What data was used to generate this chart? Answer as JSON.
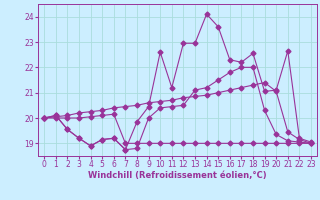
{
  "background_color": "#cceeff",
  "grid_color": "#aadddd",
  "line_color": "#993399",
  "marker": "D",
  "markersize": 2.5,
  "linewidth": 0.8,
  "xlabel": "Windchill (Refroidissement éolien,°C)",
  "xlabel_fontsize": 6.0,
  "tick_fontsize": 5.5,
  "ylim": [
    18.5,
    24.5
  ],
  "yticks": [
    19,
    20,
    21,
    22,
    23,
    24
  ],
  "xlim": [
    -0.5,
    23.5
  ],
  "xticks": [
    0,
    1,
    2,
    3,
    4,
    5,
    6,
    7,
    8,
    9,
    10,
    11,
    12,
    13,
    14,
    15,
    16,
    17,
    18,
    19,
    20,
    21,
    22,
    23
  ],
  "series1_x": [
    0,
    1,
    2,
    3,
    4,
    5,
    6,
    7,
    8,
    9,
    10,
    11,
    12,
    13,
    14,
    15,
    16,
    17,
    18,
    19,
    20,
    21,
    22,
    23
  ],
  "series1_y": [
    20.0,
    20.1,
    19.55,
    19.2,
    18.9,
    19.15,
    19.2,
    18.75,
    18.8,
    20.0,
    20.4,
    20.45,
    20.5,
    21.1,
    21.2,
    21.5,
    21.8,
    22.0,
    22.0,
    20.3,
    19.35,
    19.1,
    19.05,
    19.0
  ],
  "series2_x": [
    0,
    1,
    2,
    3,
    4,
    5,
    6,
    7,
    8,
    9,
    10,
    11,
    12,
    13,
    14,
    15,
    16,
    17,
    18,
    19,
    20,
    21,
    22,
    23
  ],
  "series2_y": [
    20.0,
    20.05,
    20.1,
    20.2,
    20.25,
    20.3,
    20.4,
    20.45,
    20.5,
    20.6,
    20.65,
    20.7,
    20.8,
    20.85,
    20.9,
    21.0,
    21.1,
    21.2,
    21.3,
    21.4,
    21.05,
    19.45,
    19.15,
    19.0
  ],
  "series3_x": [
    0,
    1,
    2,
    3,
    4,
    5,
    6,
    7,
    8,
    9,
    10,
    11,
    12,
    13,
    14,
    15,
    16,
    17,
    18,
    19,
    20,
    21,
    22,
    23
  ],
  "series3_y": [
    20.0,
    20.0,
    20.0,
    20.0,
    20.05,
    20.1,
    20.15,
    19.0,
    19.0,
    19.0,
    19.0,
    19.0,
    19.0,
    19.0,
    19.0,
    19.0,
    19.0,
    19.0,
    19.0,
    19.0,
    19.0,
    19.0,
    19.0,
    19.0
  ],
  "series4_x": [
    0,
    1,
    2,
    3,
    4,
    5,
    6,
    7,
    8,
    9,
    10,
    11,
    12,
    13,
    14,
    15,
    16,
    17,
    18,
    19,
    20,
    21,
    22,
    23
  ],
  "series4_y": [
    20.0,
    20.1,
    19.55,
    19.2,
    18.9,
    19.15,
    19.2,
    18.75,
    19.85,
    20.45,
    22.6,
    21.2,
    22.95,
    22.95,
    24.1,
    23.6,
    22.3,
    22.2,
    22.55,
    21.05,
    21.1,
    22.65,
    19.2,
    19.05
  ]
}
